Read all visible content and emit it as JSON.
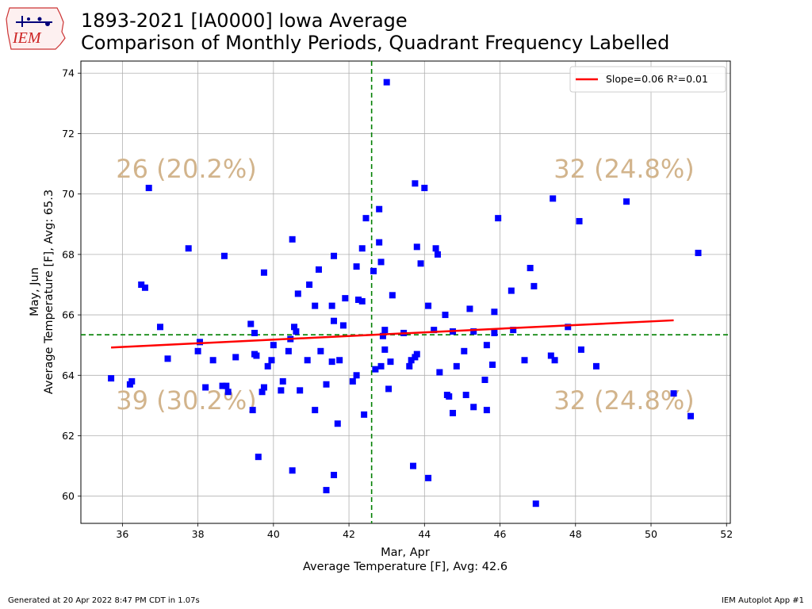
{
  "header": {
    "title_line1": "1893-2021 [IA0000] Iowa Average",
    "title_line2": "Comparison of Monthly Periods, Quadrant Frequency Labelled"
  },
  "logo": {
    "text": "IEM",
    "icon": "iowa-state-map-logo"
  },
  "footer": {
    "left": "Generated at 20 Apr 2022 8:47 PM CDT in 1.07s",
    "right": "IEM Autoplot App #1"
  },
  "chart_data": {
    "type": "scatter",
    "title": "1893-2021 [IA0000] Iowa Average",
    "subtitle": "Comparison of Monthly Periods, Quadrant Frequency Labelled",
    "xlabel_line1": "Mar, Apr",
    "xlabel_line2": "Average Temperature [F], Avg: 42.6",
    "ylabel_line1": "May, Jun",
    "ylabel_line2": "Average Temperature [F], Avg: 65.3",
    "xlim": [
      34.9,
      52.1
    ],
    "ylim": [
      59.1,
      74.4
    ],
    "xticks": [
      "36",
      "38",
      "40",
      "42",
      "44",
      "46",
      "48",
      "50",
      "52"
    ],
    "yticks": [
      "60",
      "62",
      "64",
      "66",
      "68",
      "70",
      "72",
      "74"
    ],
    "grid": true,
    "legend_position": "top-right",
    "legend_label": "Slope=0.06 R²=0.01",
    "x_mean": 42.6,
    "y_mean": 65.34,
    "fit_line": {
      "x": [
        35.7,
        50.6
      ],
      "y": [
        64.92,
        65.82
      ]
    },
    "quadrant_labels": {
      "top_left": "26 (20.2%)",
      "top_right": "32 (24.8%)",
      "bottom_left": "39 (30.2%)",
      "bottom_right": "32 (24.8%)"
    },
    "colors": {
      "points": "#0000ff",
      "fit": "#ff0000",
      "mean_lines": "#008000",
      "quadrant_text": "#d2b48c"
    },
    "points": [
      [
        35.7,
        63.9
      ],
      [
        36.2,
        63.7
      ],
      [
        36.25,
        63.8
      ],
      [
        36.5,
        67.0
      ],
      [
        36.6,
        66.9
      ],
      [
        36.7,
        70.2
      ],
      [
        37.0,
        65.6
      ],
      [
        37.2,
        64.55
      ],
      [
        37.75,
        68.2
      ],
      [
        38.0,
        64.8
      ],
      [
        38.05,
        65.1
      ],
      [
        38.2,
        63.6
      ],
      [
        38.4,
        64.5
      ],
      [
        38.65,
        63.65
      ],
      [
        38.7,
        67.95
      ],
      [
        38.75,
        63.65
      ],
      [
        38.8,
        63.45
      ],
      [
        39.0,
        64.6
      ],
      [
        39.4,
        65.7
      ],
      [
        39.45,
        62.85
      ],
      [
        39.5,
        64.7
      ],
      [
        39.5,
        65.4
      ],
      [
        39.55,
        64.65
      ],
      [
        39.6,
        61.3
      ],
      [
        39.7,
        63.45
      ],
      [
        39.75,
        63.6
      ],
      [
        39.75,
        67.4
      ],
      [
        39.85,
        64.3
      ],
      [
        39.95,
        64.5
      ],
      [
        40.0,
        65.0
      ],
      [
        40.2,
        63.5
      ],
      [
        40.25,
        63.8
      ],
      [
        40.4,
        64.8
      ],
      [
        40.45,
        65.2
      ],
      [
        40.5,
        68.5
      ],
      [
        40.5,
        60.85
      ],
      [
        40.55,
        65.6
      ],
      [
        40.6,
        65.45
      ],
      [
        40.65,
        66.7
      ],
      [
        40.7,
        63.5
      ],
      [
        40.9,
        64.5
      ],
      [
        40.95,
        67.0
      ],
      [
        41.1,
        66.3
      ],
      [
        41.1,
        62.85
      ],
      [
        41.2,
        67.5
      ],
      [
        41.25,
        64.8
      ],
      [
        41.4,
        63.7
      ],
      [
        41.4,
        60.2
      ],
      [
        41.55,
        66.3
      ],
      [
        41.55,
        64.45
      ],
      [
        41.6,
        65.8
      ],
      [
        41.6,
        67.95
      ],
      [
        41.6,
        60.7
      ],
      [
        41.7,
        62.4
      ],
      [
        41.75,
        64.5
      ],
      [
        41.85,
        65.65
      ],
      [
        41.9,
        66.55
      ],
      [
        42.1,
        63.8
      ],
      [
        42.2,
        64.0
      ],
      [
        42.2,
        67.6
      ],
      [
        42.25,
        66.5
      ],
      [
        42.35,
        66.45
      ],
      [
        42.35,
        68.2
      ],
      [
        42.4,
        62.7
      ],
      [
        42.45,
        69.2
      ],
      [
        42.65,
        67.45
      ],
      [
        42.7,
        64.2
      ],
      [
        42.8,
        69.5
      ],
      [
        42.8,
        68.4
      ],
      [
        42.85,
        67.75
      ],
      [
        42.85,
        64.3
      ],
      [
        42.9,
        65.3
      ],
      [
        42.95,
        65.5
      ],
      [
        42.95,
        64.85
      ],
      [
        43.0,
        73.7
      ],
      [
        43.05,
        63.55
      ],
      [
        43.1,
        64.45
      ],
      [
        43.15,
        66.65
      ],
      [
        43.45,
        65.4
      ],
      [
        43.6,
        64.3
      ],
      [
        43.65,
        64.5
      ],
      [
        43.7,
        61.0
      ],
      [
        43.75,
        70.35
      ],
      [
        43.75,
        64.6
      ],
      [
        43.8,
        64.7
      ],
      [
        43.8,
        68.25
      ],
      [
        43.9,
        67.7
      ],
      [
        44.0,
        70.2
      ],
      [
        44.1,
        66.3
      ],
      [
        44.1,
        60.6
      ],
      [
        44.25,
        65.5
      ],
      [
        44.3,
        68.2
      ],
      [
        44.35,
        68.0
      ],
      [
        44.4,
        64.1
      ],
      [
        44.55,
        66.0
      ],
      [
        44.6,
        63.35
      ],
      [
        44.65,
        63.3
      ],
      [
        44.75,
        65.45
      ],
      [
        44.75,
        62.75
      ],
      [
        44.85,
        64.3
      ],
      [
        45.05,
        64.8
      ],
      [
        45.1,
        63.35
      ],
      [
        45.2,
        66.2
      ],
      [
        45.3,
        65.45
      ],
      [
        45.3,
        62.95
      ],
      [
        45.6,
        63.85
      ],
      [
        45.65,
        65.0
      ],
      [
        45.65,
        62.85
      ],
      [
        45.8,
        64.35
      ],
      [
        45.85,
        65.4
      ],
      [
        45.85,
        66.1
      ],
      [
        45.95,
        69.2
      ],
      [
        46.3,
        66.8
      ],
      [
        46.35,
        65.5
      ],
      [
        46.65,
        64.5
      ],
      [
        46.8,
        67.55
      ],
      [
        46.9,
        66.95
      ],
      [
        46.95,
        59.75
      ],
      [
        47.35,
        64.65
      ],
      [
        47.4,
        69.85
      ],
      [
        47.45,
        64.5
      ],
      [
        47.8,
        65.6
      ],
      [
        48.1,
        69.1
      ],
      [
        48.15,
        64.85
      ],
      [
        48.55,
        64.3
      ],
      [
        49.35,
        69.75
      ],
      [
        50.6,
        63.4
      ],
      [
        51.05,
        62.65
      ],
      [
        51.25,
        68.05
      ]
    ]
  }
}
